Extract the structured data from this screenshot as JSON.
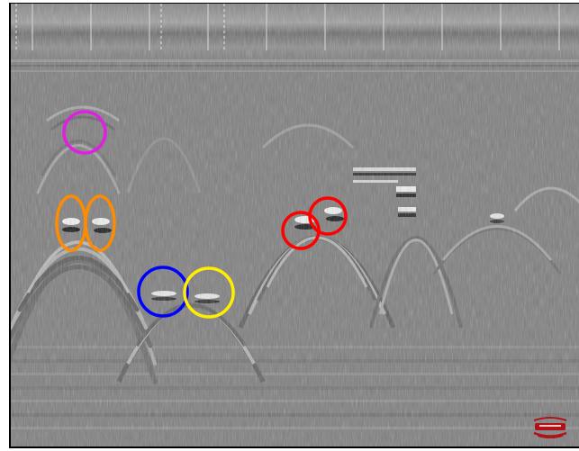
{
  "image": {
    "type": "gpr-radargram",
    "colors": {
      "background": "#ffffff",
      "scan_base": "#7f7f7f",
      "border": "#000000",
      "dashed_marker": "#e6e6e6",
      "solid_marker": "#d9d9d9",
      "logo": "#b01218"
    },
    "annotations": [
      {
        "name": "magenta-circle-annotation",
        "color": "#e020e0",
        "shape": "circle"
      },
      {
        "name": "orange-ellipse-annotation-left",
        "color": "#ff8c00",
        "shape": "ellipse"
      },
      {
        "name": "orange-ellipse-annotation-right",
        "color": "#ff8c00",
        "shape": "ellipse"
      },
      {
        "name": "blue-circle-annotation",
        "color": "#0000ff",
        "shape": "circle"
      },
      {
        "name": "yellow-circle-annotation",
        "color": "#ffee00",
        "shape": "circle"
      },
      {
        "name": "red-circle-annotation-left",
        "color": "#ff0000",
        "shape": "circle"
      },
      {
        "name": "red-circle-annotation-right",
        "color": "#ff0000",
        "shape": "circle"
      }
    ]
  }
}
